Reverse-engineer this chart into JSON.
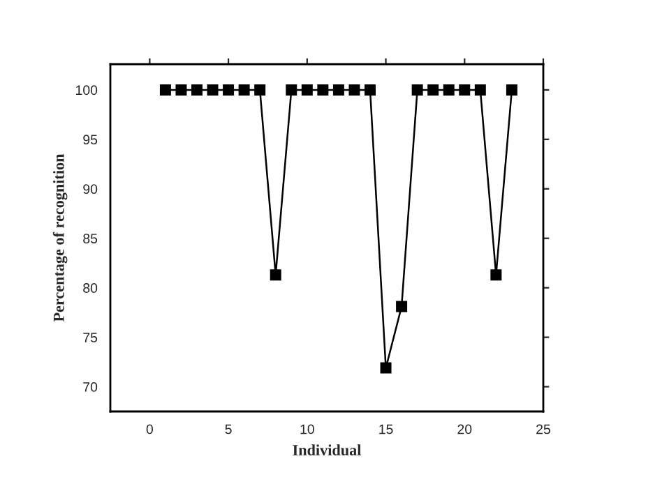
{
  "chart_data": {
    "type": "line",
    "xlabel": "Individual",
    "ylabel": "Percentage of recognition",
    "x": [
      1,
      2,
      3,
      4,
      5,
      6,
      7,
      8,
      9,
      10,
      11,
      12,
      13,
      14,
      15,
      16,
      17,
      18,
      19,
      20,
      21,
      22,
      23
    ],
    "series": [
      {
        "color": "#000000",
        "values": [
          100,
          100,
          100,
          100,
          100,
          100,
          100,
          81.3,
          100,
          100,
          100,
          100,
          100,
          100,
          71.9,
          78.1,
          100,
          100,
          100,
          100,
          100,
          81.3,
          100
        ]
      }
    ],
    "xlim": [
      -2.5,
      25
    ],
    "xticks": [
      0,
      5,
      10,
      15,
      20,
      25
    ],
    "ylim": [
      67.5,
      102.6
    ],
    "yticks": [
      70,
      75,
      80,
      85,
      90,
      95,
      100
    ],
    "marker": "square",
    "line_style": "solid",
    "grid": false,
    "legend": false
  }
}
